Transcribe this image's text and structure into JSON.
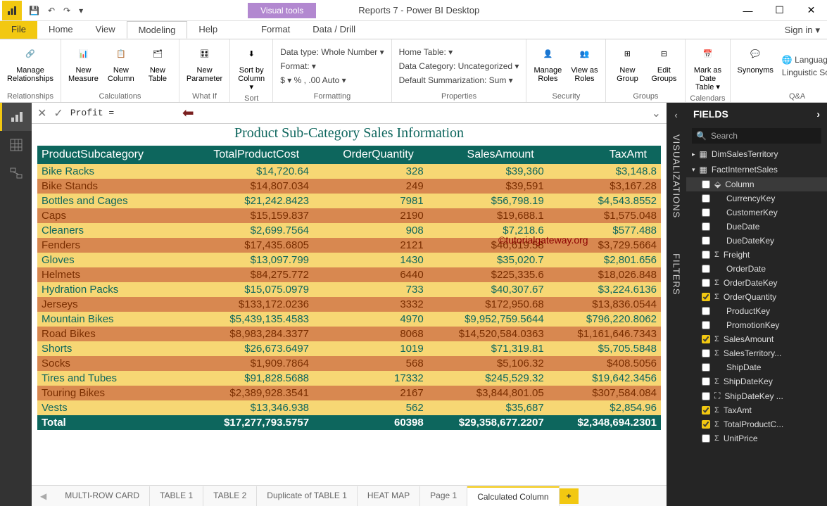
{
  "window": {
    "title": "Reports 7 - Power BI Desktop",
    "visual_tools": "Visual tools",
    "signin": "Sign in"
  },
  "menu": {
    "file": "File",
    "home": "Home",
    "view": "View",
    "modeling": "Modeling",
    "help": "Help",
    "format": "Format",
    "datadrill": "Data / Drill"
  },
  "ribbon": {
    "relationships": {
      "manage": "Manage\nRelationships",
      "group": "Relationships"
    },
    "calculations": {
      "measure": "New\nMeasure",
      "column": "New\nColumn",
      "table": "New\nTable",
      "group": "Calculations"
    },
    "whatif": {
      "param": "New\nParameter",
      "group": "What If"
    },
    "sort": {
      "sortby": "Sort by\nColumn ▾",
      "group": "Sort"
    },
    "formatting": {
      "datatype": "Data type: Whole Number ▾",
      "format": "Format: ▾",
      "currency": "$ ▾  %  ,  .00  Auto ▾",
      "group": "Formatting"
    },
    "properties": {
      "hometable": "Home Table: ▾",
      "datacategory": "Data Category: Uncategorized ▾",
      "summarization": "Default Summarization: Sum ▾",
      "group": "Properties"
    },
    "security": {
      "manage": "Manage\nRoles",
      "view": "View as\nRoles",
      "group": "Security"
    },
    "groups": {
      "new": "New\nGroup",
      "edit": "Edit\nGroups",
      "group": "Groups"
    },
    "calendars": {
      "mark": "Mark as\nDate Table ▾",
      "group": "Calendars"
    },
    "qa": {
      "synonyms": "Synonyms",
      "language": "🌐 Language ▾",
      "schema": "Linguistic Schema ▾",
      "group": "Q&A"
    }
  },
  "formula": {
    "text": "Profit = "
  },
  "report": {
    "title": "Product Sub-Category Sales Information",
    "columns": [
      "ProductSubcategory",
      "TotalProductCost",
      "OrderQuantity",
      "SalesAmount",
      "TaxAmt"
    ],
    "rows": [
      [
        "Bike Racks",
        "$14,720.64",
        "328",
        "$39,360",
        "$3,148.8"
      ],
      [
        "Bike Stands",
        "$14,807.034",
        "249",
        "$39,591",
        "$3,167.28"
      ],
      [
        "Bottles and Cages",
        "$21,242.8423",
        "7981",
        "$56,798.19",
        "$4,543.8552"
      ],
      [
        "Caps",
        "$15,159.837",
        "2190",
        "$19,688.1",
        "$1,575.048"
      ],
      [
        "Cleaners",
        "$2,699.7564",
        "908",
        "$7,218.6",
        "$577.488"
      ],
      [
        "Fenders",
        "$17,435.6805",
        "2121",
        "$46,619.58",
        "$3,729.5664"
      ],
      [
        "Gloves",
        "$13,097.799",
        "1430",
        "$35,020.7",
        "$2,801.656"
      ],
      [
        "Helmets",
        "$84,275.772",
        "6440",
        "$225,335.6",
        "$18,026.848"
      ],
      [
        "Hydration Packs",
        "$15,075.0979",
        "733",
        "$40,307.67",
        "$3,224.6136"
      ],
      [
        "Jerseys",
        "$133,172.0236",
        "3332",
        "$172,950.68",
        "$13,836.0544"
      ],
      [
        "Mountain Bikes",
        "$5,439,135.4583",
        "4970",
        "$9,952,759.5644",
        "$796,220.8062"
      ],
      [
        "Road Bikes",
        "$8,983,284.3377",
        "8068",
        "$14,520,584.0363",
        "$1,161,646.7343"
      ],
      [
        "Shorts",
        "$26,673.6497",
        "1019",
        "$71,319.81",
        "$5,705.5848"
      ],
      [
        "Socks",
        "$1,909.7864",
        "568",
        "$5,106.32",
        "$408.5056"
      ],
      [
        "Tires and Tubes",
        "$91,828.5688",
        "17332",
        "$245,529.32",
        "$19,642.3456"
      ],
      [
        "Touring Bikes",
        "$2,389,928.3541",
        "2167",
        "$3,844,801.05",
        "$307,584.084"
      ],
      [
        "Vests",
        "$13,346.938",
        "562",
        "$35,687",
        "$2,854.96"
      ]
    ],
    "total": [
      "Total",
      "$17,277,793.5757",
      "60398",
      "$29,358,677.2207",
      "$2,348,694.2301"
    ]
  },
  "pagetabs": [
    "MULTI-ROW CARD",
    "TABLE 1",
    "TABLE 2",
    "Duplicate of TABLE 1",
    "HEAT MAP",
    "Page 1",
    "Calculated Column"
  ],
  "active_page_tab": 6,
  "panes": {
    "viz": "VISUALIZATIONS",
    "filters": "FILTERS",
    "fields": "FIELDS",
    "search": "Search"
  },
  "fields": {
    "tables": [
      {
        "name": "DimSalesTerritory",
        "expanded": false
      },
      {
        "name": "FactInternetSales",
        "expanded": true,
        "fields": [
          {
            "name": "Column",
            "checked": false,
            "calc": true,
            "selected": true
          },
          {
            "name": "CurrencyKey",
            "checked": false
          },
          {
            "name": "CustomerKey",
            "checked": false
          },
          {
            "name": "DueDate",
            "checked": false
          },
          {
            "name": "DueDateKey",
            "checked": false
          },
          {
            "name": "Freight",
            "checked": false,
            "sigma": true
          },
          {
            "name": "OrderDate",
            "checked": false
          },
          {
            "name": "OrderDateKey",
            "checked": false,
            "sigma": true
          },
          {
            "name": "OrderQuantity",
            "checked": true,
            "sigma": true
          },
          {
            "name": "ProductKey",
            "checked": false
          },
          {
            "name": "PromotionKey",
            "checked": false
          },
          {
            "name": "SalesAmount",
            "checked": true,
            "sigma": true
          },
          {
            "name": "SalesTerritory...",
            "checked": false,
            "sigma": true
          },
          {
            "name": "ShipDate",
            "checked": false
          },
          {
            "name": "ShipDateKey",
            "checked": false,
            "sigma": true
          },
          {
            "name": "ShipDateKey ...",
            "checked": false,
            "hier": true
          },
          {
            "name": "TaxAmt",
            "checked": true,
            "sigma": true
          },
          {
            "name": "TotalProductC...",
            "checked": true,
            "sigma": true
          },
          {
            "name": "UnitPrice",
            "checked": false,
            "sigma": true
          }
        ]
      }
    ]
  },
  "watermark": "©tutorialgateway.org"
}
